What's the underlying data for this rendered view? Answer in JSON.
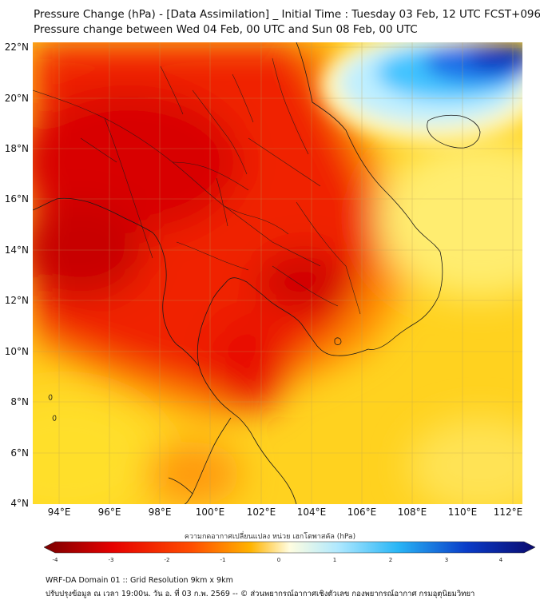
{
  "title_line1": "Pressure Change (hPa) - [Data Assimilation] _ Initial Time : Tuesday 03 Feb, 12 UTC FCST+096",
  "title_line2": "Pressure change between Wed 04 Feb, 00 UTC and Sun 08 Feb, 00 UTC",
  "lat_ticks": [
    "22°N",
    "20°N",
    "18°N",
    "16°N",
    "14°N",
    "12°N",
    "10°N",
    "8°N",
    "6°N",
    "4°N"
  ],
  "lon_ticks": [
    "94°E",
    "96°E",
    "98°E",
    "100°E",
    "102°E",
    "104°E",
    "106°E",
    "108°E",
    "110°E",
    "112°E"
  ],
  "colorbar": {
    "title": "ความกดอากาศเปลี่ยนแปลง หน่วย เฮกโตพาสคัล (hPa)",
    "labels": [
      "-4",
      "-3",
      "-2",
      "-1",
      "0",
      "1",
      "2",
      "3",
      "4"
    ],
    "range": [
      -4,
      4
    ],
    "colors": {
      "min": "#7a0000",
      "neg3": "#e60000",
      "neg2": "#ff4d00",
      "neg1": "#ffb300",
      "zero": "#fffde0",
      "pos1": "#aee8ff",
      "pos2": "#29b6f6",
      "pos3": "#0a3cc8",
      "max": "#0a0a6e"
    }
  },
  "footer_line1": "WRF-DA Domain 01 :: Grid Resolution 9km x 9km",
  "footer_line2": "ปรับปรุงข้อมูล ณ เวลา 19:00น. วัน อ. ที่ 03 ก.พ. 2569 -- © ส่วนพยากรณ์อากาศเชิงตัวเลข กองพยากรณ์อากาศ กรมอุตุนิยมวิทยา"
}
